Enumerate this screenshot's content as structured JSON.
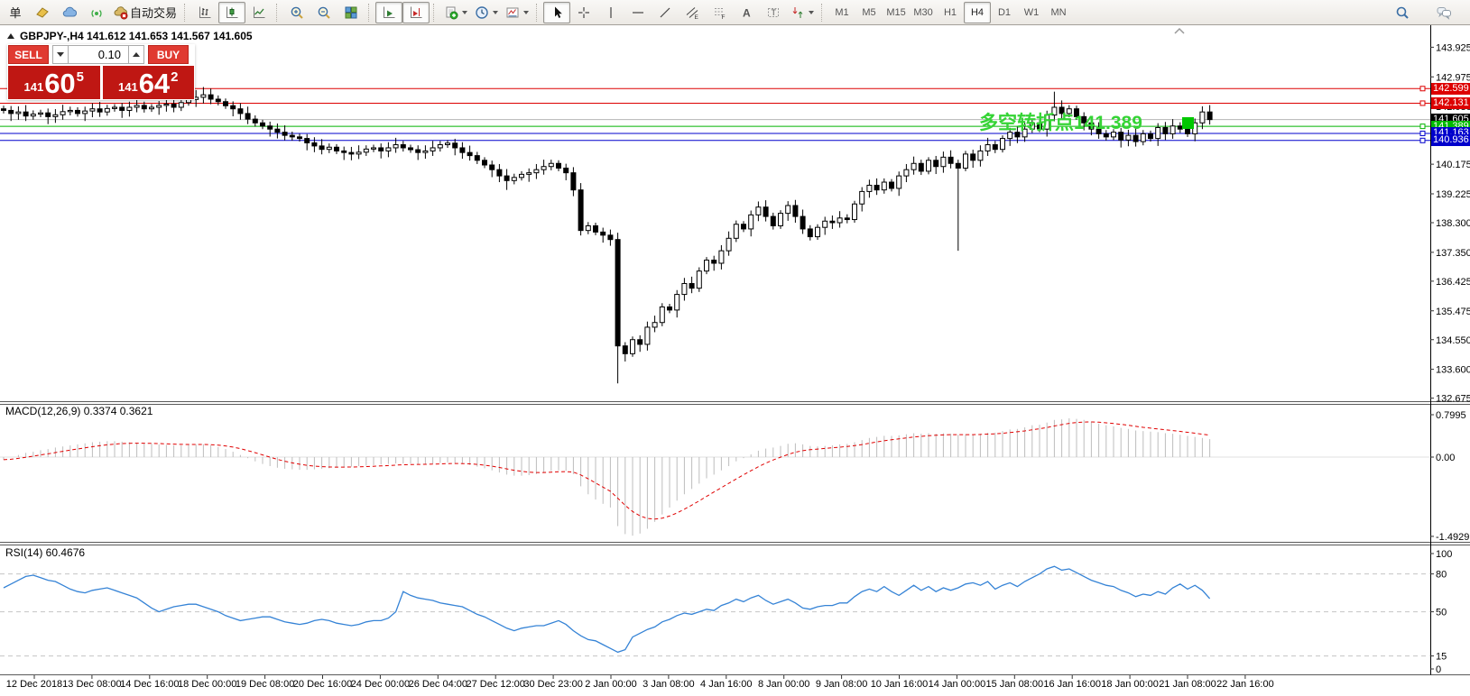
{
  "toolbar": {
    "groups": [
      {
        "name": "file-group",
        "items": [
          {
            "name": "new-order-button",
            "icon": "new-order-icon",
            "label": "单"
          },
          {
            "name": "market-depth-button",
            "icon": "gold-tag-icon"
          },
          {
            "name": "cloud-button",
            "icon": "cloud-icon"
          },
          {
            "name": "signals-button",
            "icon": "signal-icon"
          },
          {
            "name": "autotrading-button",
            "icon": "autotrading-icon",
            "label": "自动交易"
          }
        ]
      },
      {
        "name": "chart-type-group",
        "items": [
          {
            "name": "bar-chart-button",
            "icon": "bar-chart-icon"
          },
          {
            "name": "candlestick-button",
            "icon": "candlestick-icon",
            "active": true
          },
          {
            "name": "line-chart-button",
            "icon": "line-chart-icon"
          }
        ]
      },
      {
        "name": "zoom-group",
        "items": [
          {
            "name": "zoom-in-button",
            "icon": "zoom-in-icon"
          },
          {
            "name": "zoom-out-button",
            "icon": "zoom-out-icon"
          },
          {
            "name": "tile-windows-button",
            "icon": "tile-windows-icon"
          }
        ]
      },
      {
        "name": "scroll-group",
        "items": [
          {
            "name": "auto-scroll-button",
            "icon": "auto-scroll-icon",
            "active": true
          },
          {
            "name": "chart-shift-button",
            "icon": "chart-shift-icon",
            "active": true
          }
        ]
      },
      {
        "name": "insert-group",
        "items": [
          {
            "name": "indicators-button",
            "icon": "add-indicator-icon",
            "dropdown": true
          },
          {
            "name": "periods-button",
            "icon": "clock-icon",
            "dropdown": true
          },
          {
            "name": "templates-button",
            "icon": "template-icon",
            "dropdown": true
          }
        ]
      },
      {
        "name": "objects-group",
        "items": [
          {
            "name": "cursor-button",
            "icon": "cursor-icon",
            "active": true
          },
          {
            "name": "crosshair-button",
            "icon": "crosshair-icon"
          },
          {
            "name": "vertical-line-button",
            "icon": "vertical-line-icon"
          },
          {
            "name": "horizontal-line-button",
            "icon": "horizontal-line-icon"
          },
          {
            "name": "trendline-button",
            "icon": "trendline-icon"
          },
          {
            "name": "channel-button",
            "icon": "channel-icon"
          },
          {
            "name": "fibonacci-button",
            "icon": "fibonacci-icon"
          },
          {
            "name": "text-button",
            "icon": "text-icon"
          },
          {
            "name": "text-label-button",
            "icon": "text-label-icon"
          },
          {
            "name": "arrows-button",
            "icon": "arrows-icon",
            "dropdown": true
          }
        ]
      },
      {
        "name": "timeframe-group",
        "items": [
          {
            "name": "tf-m1-button",
            "label": "M1",
            "tf": true
          },
          {
            "name": "tf-m5-button",
            "label": "M5",
            "tf": true
          },
          {
            "name": "tf-m15-button",
            "label": "M15",
            "tf": true
          },
          {
            "name": "tf-m30-button",
            "label": "M30",
            "tf": true
          },
          {
            "name": "tf-h1-button",
            "label": "H1",
            "tf": true
          },
          {
            "name": "tf-h4-button",
            "label": "H4",
            "tf": true,
            "active": true
          },
          {
            "name": "tf-d1-button",
            "label": "D1",
            "tf": true
          },
          {
            "name": "tf-w1-button",
            "label": "W1",
            "tf": true
          },
          {
            "name": "tf-mn-button",
            "label": "MN",
            "tf": true
          }
        ]
      }
    ],
    "right_items": [
      {
        "name": "search-button",
        "icon": "search-icon"
      },
      {
        "name": "chat-button",
        "icon": "chat-icon"
      }
    ]
  },
  "chart": {
    "title": "GBPJPY-,H4 141.612 141.653 141.567 141.605"
  },
  "trade_panel": {
    "sell_label": "SELL",
    "buy_label": "BUY",
    "lot": "0.10",
    "sell_small": "141",
    "sell_big": "60",
    "sell_sup": "5",
    "buy_small": "141",
    "buy_big": "64",
    "buy_sup": "2"
  },
  "annotation": {
    "text": "多空转折点141.389",
    "color": "#35d435"
  },
  "price_axis": {
    "ticks": [
      {
        "label": "143.925",
        "value": 143.925
      },
      {
        "label": "142.975",
        "value": 142.975
      },
      {
        "label": "142.030",
        "value": 142.03
      },
      {
        "label": "140.175",
        "value": 140.175
      },
      {
        "label": "139.225",
        "value": 139.225
      },
      {
        "label": "138.300",
        "value": 138.3
      },
      {
        "label": "137.350",
        "value": 137.35
      },
      {
        "label": "136.425",
        "value": 136.425
      },
      {
        "label": "135.475",
        "value": 135.475
      },
      {
        "label": "134.550",
        "value": 134.55
      },
      {
        "label": "133.600",
        "value": 133.6
      },
      {
        "label": "132.675",
        "value": 132.675
      }
    ]
  },
  "badges": [
    {
      "label": "142.599",
      "value": 142.599,
      "bg": "#dd0000",
      "name": "resistance-price-badge"
    },
    {
      "label": "142.131",
      "value": 142.131,
      "bg": "#dd0000",
      "name": "resistance-price-badge"
    },
    {
      "label": "141.605",
      "value": 141.605,
      "bg": "#000000",
      "name": "current-price-badge"
    },
    {
      "label": "141.389",
      "value": 141.389,
      "bg": "#00ba00",
      "name": "pivot-price-badge"
    },
    {
      "label": "141.163",
      "value": 141.163,
      "bg": "#0000cc",
      "name": "support-price-badge"
    },
    {
      "label": "140.936",
      "value": 140.936,
      "bg": "#0000cc",
      "name": "support-price-badge"
    }
  ],
  "hlines": [
    {
      "value": 142.599,
      "color": "#dd0000",
      "handle": true
    },
    {
      "value": 142.131,
      "color": "#dd0000",
      "handle": true
    },
    {
      "value": 141.605,
      "color": "#b6b6b6",
      "handle": false
    },
    {
      "value": 141.389,
      "color": "#00b300",
      "handle": true
    },
    {
      "value": 141.163,
      "color": "#0000cc",
      "handle": true
    },
    {
      "value": 140.936,
      "color": "#0000cc",
      "handle": true
    }
  ],
  "macd": {
    "label": "MACD(12,26,9) 0.3374 0.3621",
    "ticks": [
      {
        "label": "0.7995",
        "value": 0.7995
      },
      {
        "label": "0.00",
        "value": 0
      },
      {
        "label": "-1.4929",
        "value": -1.4929
      }
    ]
  },
  "rsi": {
    "label": "RSI(14) 60.4676",
    "ticks": [
      {
        "label": "100",
        "value": 100
      },
      {
        "label": "80",
        "value": 80
      },
      {
        "label": "50",
        "value": 50
      },
      {
        "label": "15",
        "value": 15
      },
      {
        "label": "0",
        "value": 0
      }
    ]
  },
  "time_axis": {
    "labels": [
      {
        "label": "12 Dec 2018"
      },
      {
        "label": "13 Dec 08:00"
      },
      {
        "label": "14 Dec 16:00"
      },
      {
        "label": "18 Dec 00:00"
      },
      {
        "label": "19 Dec 08:00"
      },
      {
        "label": "20 Dec 16:00"
      },
      {
        "label": "24 Dec 00:00"
      },
      {
        "label": "26 Dec 04:00"
      },
      {
        "label": "27 Dec 12:00"
      },
      {
        "label": "30 Dec 23:00"
      },
      {
        "label": "2 Jan 00:00"
      },
      {
        "label": "3 Jan 08:00"
      },
      {
        "label": "4 Jan 16:00"
      },
      {
        "label": "8 Jan 00:00"
      },
      {
        "label": "9 Jan 08:00"
      },
      {
        "label": "10 Jan 16:00"
      },
      {
        "label": "14 Jan 00:00"
      },
      {
        "label": "15 Jan 08:00"
      },
      {
        "label": "16 Jan 16:00"
      },
      {
        "label": "18 Jan 00:00"
      },
      {
        "label": "21 Jan 08:00"
      },
      {
        "label": "22 Jan 16:00"
      }
    ]
  },
  "chart_data": [
    {
      "type": "candlestick",
      "title": "GBPJPY- H4",
      "ylim": [
        132.7,
        144.7
      ],
      "open_first": 141.95,
      "closes": [
        141.9,
        141.8,
        141.85,
        141.72,
        141.78,
        141.82,
        141.7,
        141.76,
        141.86,
        141.9,
        141.8,
        141.88,
        141.95,
        141.85,
        141.96,
        142.0,
        141.9,
        142.0,
        142.06,
        141.95,
        142.0,
        142.06,
        142.1,
        142.0,
        142.15,
        142.25,
        142.32,
        142.4,
        142.26,
        142.18,
        142.05,
        141.95,
        141.8,
        141.62,
        141.5,
        141.4,
        141.3,
        141.2,
        141.1,
        141.05,
        141.0,
        140.86,
        140.76,
        140.65,
        140.72,
        140.6,
        140.55,
        140.5,
        140.56,
        140.66,
        140.7,
        140.6,
        140.7,
        140.8,
        140.7,
        140.64,
        140.55,
        140.6,
        140.7,
        140.8,
        140.85,
        140.7,
        140.55,
        140.45,
        140.3,
        140.15,
        140.0,
        139.8,
        139.65,
        139.75,
        139.85,
        139.9,
        140.0,
        140.1,
        140.2,
        140.05,
        139.9,
        139.35,
        138.05,
        138.2,
        138.0,
        137.9,
        137.76,
        134.35,
        134.1,
        134.55,
        134.4,
        134.95,
        135.1,
        135.6,
        135.5,
        136.0,
        136.35,
        136.2,
        136.75,
        137.1,
        137.0,
        137.4,
        137.8,
        138.25,
        138.1,
        138.55,
        138.8,
        138.5,
        138.2,
        138.6,
        138.85,
        138.5,
        138.1,
        137.85,
        138.15,
        138.35,
        138.3,
        138.45,
        138.4,
        138.9,
        139.3,
        139.5,
        139.35,
        139.6,
        139.4,
        139.8,
        140.0,
        140.2,
        139.95,
        140.3,
        140.1,
        140.4,
        140.2,
        140.05,
        140.5,
        140.3,
        140.6,
        140.8,
        140.65,
        141.0,
        141.2,
        141.05,
        141.3,
        141.5,
        141.3,
        141.75,
        142.0,
        141.8,
        141.95,
        141.7,
        141.5,
        141.3,
        141.15,
        141.05,
        141.2,
        140.95,
        141.1,
        140.9,
        141.15,
        141.0,
        141.35,
        141.15,
        141.4,
        141.3,
        141.15,
        141.5,
        141.85,
        141.605
      ],
      "wick_overrides": {
        "26": {
          "h": 142.55
        },
        "27": {
          "h": 142.65
        },
        "28": {
          "h": 142.6
        },
        "68": {
          "l": 139.35
        },
        "83": {
          "l": 133.15
        },
        "84": {
          "l": 133.85
        },
        "129": {
          "l": 137.4
        },
        "142": {
          "h": 142.5
        }
      },
      "marker": {
        "type": "buy-square",
        "color": "#00c800",
        "price": 141.5,
        "bar_index": 160
      },
      "ohlc_current": {
        "open": 141.612,
        "high": 141.653,
        "low": 141.567,
        "close": 141.605
      }
    },
    {
      "type": "bar",
      "title": "MACD(12,26,9)",
      "ylim": [
        -1.53,
        1.05
      ],
      "colors": {
        "histogram": "#bdbdbd",
        "signal": "#e00000"
      },
      "signal_ema": 9,
      "current_values": [
        0.3374,
        0.3621
      ],
      "values": [
        -0.05,
        0.0,
        0.04,
        0.08,
        0.1,
        0.13,
        0.15,
        0.18,
        0.2,
        0.22,
        0.24,
        0.26,
        0.28,
        0.29,
        0.3,
        0.3,
        0.29,
        0.28,
        0.27,
        0.26,
        0.25,
        0.24,
        0.23,
        0.22,
        0.22,
        0.23,
        0.24,
        0.24,
        0.22,
        0.19,
        0.15,
        0.1,
        0.04,
        -0.02,
        -0.08,
        -0.13,
        -0.17,
        -0.2,
        -0.22,
        -0.23,
        -0.24,
        -0.24,
        -0.23,
        -0.22,
        -0.21,
        -0.2,
        -0.19,
        -0.18,
        -0.17,
        -0.16,
        -0.15,
        -0.14,
        -0.13,
        -0.12,
        -0.12,
        -0.12,
        -0.13,
        -0.13,
        -0.12,
        -0.11,
        -0.1,
        -0.11,
        -0.13,
        -0.15,
        -0.18,
        -0.21,
        -0.25,
        -0.29,
        -0.33,
        -0.35,
        -0.35,
        -0.34,
        -0.32,
        -0.29,
        -0.26,
        -0.25,
        -0.26,
        -0.32,
        -0.55,
        -0.7,
        -0.8,
        -0.88,
        -0.95,
        -1.3,
        -1.45,
        -1.48,
        -1.44,
        -1.35,
        -1.22,
        -1.08,
        -0.95,
        -0.82,
        -0.7,
        -0.6,
        -0.5,
        -0.4,
        -0.33,
        -0.25,
        -0.17,
        -0.08,
        -0.02,
        0.05,
        0.12,
        0.16,
        0.18,
        0.21,
        0.25,
        0.26,
        0.24,
        0.21,
        0.2,
        0.21,
        0.22,
        0.24,
        0.25,
        0.28,
        0.32,
        0.36,
        0.38,
        0.4,
        0.4,
        0.41,
        0.43,
        0.45,
        0.44,
        0.45,
        0.44,
        0.45,
        0.44,
        0.42,
        0.43,
        0.42,
        0.44,
        0.46,
        0.46,
        0.49,
        0.52,
        0.53,
        0.56,
        0.6,
        0.61,
        0.65,
        0.7,
        0.71,
        0.73,
        0.72,
        0.7,
        0.67,
        0.63,
        0.6,
        0.58,
        0.55,
        0.53,
        0.5,
        0.49,
        0.48,
        0.47,
        0.45,
        0.44,
        0.42,
        0.4,
        0.38,
        0.36,
        0.3374
      ]
    },
    {
      "type": "line",
      "title": "RSI(14)",
      "ylim": [
        0,
        104
      ],
      "levels": [
        80,
        50,
        15
      ],
      "color": "#3583d6",
      "current_value": 60.4676,
      "values": [
        69,
        72,
        75,
        78,
        79,
        77,
        75,
        74,
        71,
        68,
        66,
        65,
        67,
        68,
        69,
        67,
        65,
        63,
        61,
        57,
        53,
        50,
        52,
        54,
        55,
        56,
        56,
        54,
        52,
        50,
        47,
        45,
        43,
        44,
        45,
        46,
        46,
        44,
        42,
        41,
        40,
        41,
        43,
        44,
        43,
        41,
        40,
        39,
        40,
        42,
        43,
        43,
        45,
        50,
        66,
        63,
        61,
        60,
        59,
        57,
        56,
        55,
        54,
        51,
        48,
        46,
        43,
        40,
        37,
        35,
        37,
        38,
        39,
        39,
        41,
        43,
        40,
        35,
        31,
        28,
        27,
        24,
        21,
        18,
        20,
        30,
        33,
        36,
        38,
        42,
        44,
        47,
        49,
        48,
        50,
        52,
        51,
        55,
        57,
        60,
        58,
        61,
        63,
        59,
        56,
        58,
        60,
        57,
        53,
        52,
        54,
        55,
        55,
        57,
        57,
        62,
        66,
        68,
        66,
        70,
        66,
        63,
        67,
        71,
        67,
        70,
        66,
        69,
        67,
        69,
        72,
        73,
        71,
        74,
        68,
        71,
        73,
        70,
        74,
        77,
        80,
        84,
        86,
        83,
        84,
        81,
        78,
        75,
        73,
        71,
        70,
        67,
        65,
        62,
        64,
        63,
        66,
        64,
        69,
        72,
        68,
        71,
        67,
        60.47
      ]
    }
  ]
}
